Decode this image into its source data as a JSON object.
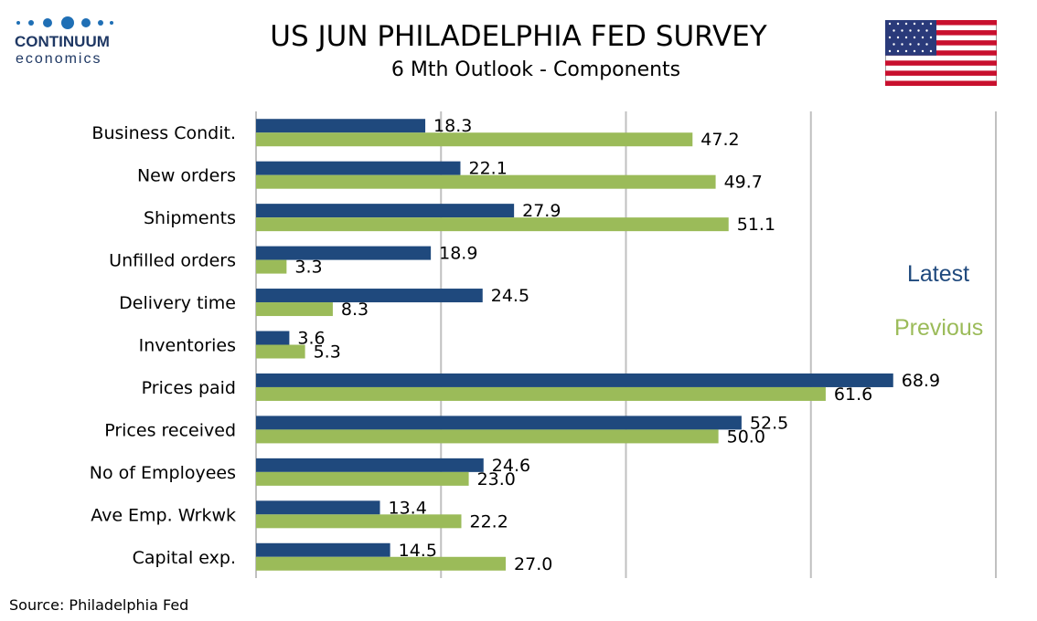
{
  "logo": {
    "name": "CONTINUUM",
    "sub": "economics"
  },
  "title": "US JUN PHILADELPHIA FED SURVEY",
  "subtitle": "6 Mth Outlook - Components",
  "source": "Source: Philadelphia Fed",
  "colors": {
    "latest": "#1f497d",
    "previous": "#9bbb59",
    "grid": "#c0c0c0"
  },
  "chart_data": {
    "type": "bar",
    "orientation": "horizontal",
    "categories": [
      "Business Condit.",
      "New orders ",
      "Shipments ",
      "Unfilled orders",
      "Delivery time",
      "Inventories",
      "Prices paid",
      "Prices received",
      "No of Employees",
      "Ave Emp. Wrkwk",
      "Capital exp."
    ],
    "series": [
      {
        "name": "Latest",
        "values": [
          18.3,
          22.1,
          27.9,
          18.9,
          24.5,
          3.6,
          68.9,
          52.5,
          24.6,
          13.4,
          14.5
        ]
      },
      {
        "name": "Previous",
        "values": [
          47.2,
          49.7,
          51.1,
          3.3,
          8.3,
          5.3,
          61.6,
          50.0,
          23.0,
          22.2,
          27.0
        ]
      }
    ],
    "xlim": [
      0,
      80
    ],
    "grid": true,
    "legend_placement": "right",
    "title": "US JUN PHILADELPHIA FED SURVEY",
    "subtitle": "6 Mth Outlook - Components"
  }
}
